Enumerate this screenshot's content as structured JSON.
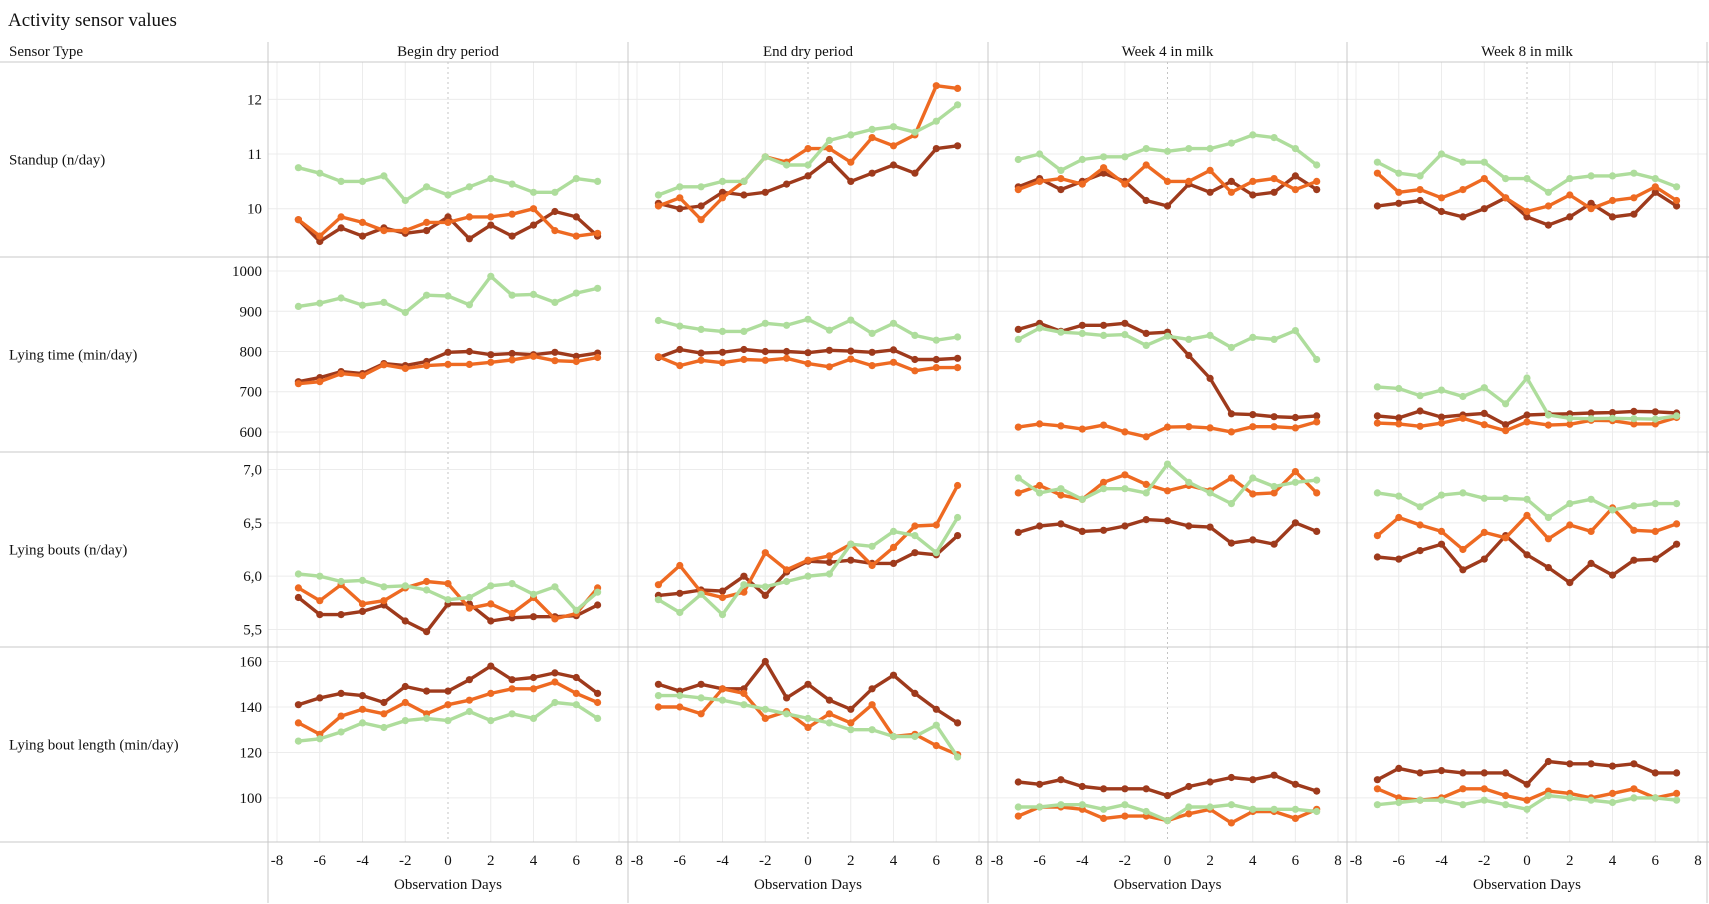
{
  "title": "Activity sensor values",
  "row_header": "Sensor Type",
  "x_axis_label": "Observation Days",
  "colors": {
    "series_a": "#9e3a1c",
    "series_b": "#ee6a22",
    "series_c": "#aedd9c",
    "grid": "#ececec",
    "divider": "#c8c8c8"
  },
  "chart_data": {
    "type": "line",
    "layout": "small-multiples",
    "columns": [
      "Begin dry period",
      "End dry period",
      "Week 4 in milk",
      "Week 8 in milk"
    ],
    "rows": [
      {
        "label": "Standup (n/day)",
        "ylim": [
          9.3,
          12.5
        ],
        "ticks": [
          10,
          11,
          12
        ],
        "tick_labels": [
          "10",
          "11",
          "12"
        ]
      },
      {
        "label": "Lying time (min/day)",
        "ylim": [
          575,
          1010
        ],
        "ticks": [
          600,
          700,
          800,
          900,
          1000
        ],
        "tick_labels": [
          "600",
          "700",
          "800",
          "900",
          "1000"
        ]
      },
      {
        "label": "Lying bouts (n/day)",
        "ylim": [
          5.43,
          7.07
        ],
        "ticks": [
          5.5,
          6.0,
          6.5,
          7.0
        ],
        "tick_labels": [
          "5,5",
          "6,0",
          "6,5",
          "7,0"
        ]
      },
      {
        "label": "Lying bout length (min/day)",
        "ylim": [
          85,
          162
        ],
        "ticks": [
          100,
          120,
          140,
          160
        ],
        "tick_labels": [
          "100",
          "120",
          "140",
          "160"
        ]
      }
    ],
    "x": [
      -7,
      -6,
      -5,
      -4,
      -3,
      -2,
      -1,
      0,
      1,
      2,
      3,
      4,
      5,
      6,
      7
    ],
    "xlim": [
      -8,
      8
    ],
    "x_ticks": [
      -8,
      -6,
      -4,
      -2,
      0,
      2,
      4,
      6,
      8
    ],
    "series": [
      {
        "color": "#9e3a1c",
        "values": [
          [
            [
              9.8,
              9.4,
              9.65,
              9.5,
              9.65,
              9.55,
              9.6,
              9.85,
              9.45,
              9.7,
              9.5,
              9.7,
              9.95,
              9.85,
              9.5
            ],
            [
              10.1,
              10.0,
              10.05,
              10.3,
              10.25,
              10.3,
              10.45,
              10.6,
              10.9,
              10.5,
              10.65,
              10.8,
              10.65,
              11.1,
              11.15
            ],
            [
              10.4,
              10.55,
              10.35,
              10.5,
              10.65,
              10.5,
              10.15,
              10.05,
              10.45,
              10.3,
              10.5,
              10.25,
              10.3,
              10.6,
              10.35
            ],
            [
              10.05,
              10.1,
              10.15,
              9.95,
              9.85,
              10.0,
              10.2,
              9.85,
              9.7,
              9.85,
              10.1,
              9.85,
              9.9,
              10.3,
              10.05
            ]
          ],
          [
            [
              725,
              735,
              750,
              745,
              770,
              765,
              775,
              798,
              800,
              792,
              795,
              792,
              798,
              788,
              796
            ],
            [
              785,
              805,
              796,
              798,
              805,
              800,
              800,
              797,
              803,
              801,
              798,
              804,
              780,
              780,
              783
            ],
            [
              855,
              870,
              850,
              865,
              865,
              870,
              845,
              848,
              790,
              733,
              645,
              643,
              638,
              636,
              640
            ],
            [
              640,
              635,
              652,
              637,
              642,
              646,
              618,
              642,
              644,
              645,
              647,
              648,
              651,
              650,
              647
            ]
          ],
          [
            [
              5.8,
              5.64,
              5.64,
              5.67,
              5.73,
              5.58,
              5.48,
              5.74,
              5.74,
              5.58,
              5.61,
              5.62,
              5.62,
              5.63,
              5.73
            ],
            [
              5.82,
              5.84,
              5.87,
              5.86,
              6.0,
              5.82,
              6.04,
              6.14,
              6.13,
              6.15,
              6.12,
              6.12,
              6.22,
              6.2,
              6.38
            ],
            [
              6.41,
              6.47,
              6.49,
              6.42,
              6.43,
              6.47,
              6.53,
              6.52,
              6.47,
              6.46,
              6.31,
              6.34,
              6.3,
              6.5,
              6.42
            ],
            [
              6.18,
              6.16,
              6.24,
              6.3,
              6.06,
              6.16,
              6.38,
              6.2,
              6.08,
              5.94,
              6.12,
              6.01,
              6.15,
              6.16,
              6.3
            ]
          ],
          [
            [
              141,
              144,
              146,
              145,
              142,
              149,
              147,
              147,
              152,
              158,
              152,
              153,
              155,
              153,
              146
            ],
            [
              150,
              147,
              150,
              148,
              148,
              160,
              144,
              150,
              143,
              139,
              148,
              154,
              146,
              139,
              133
            ],
            [
              107,
              106,
              108,
              105,
              104,
              104,
              104,
              101,
              105,
              107,
              109,
              108,
              110,
              106,
              103
            ],
            [
              108,
              113,
              111,
              112,
              111,
              111,
              111,
              106,
              116,
              115,
              115,
              114,
              115,
              111,
              111
            ]
          ]
        ]
      },
      {
        "color": "#ee6a22",
        "values": [
          [
            [
              9.8,
              9.5,
              9.85,
              9.75,
              9.6,
              9.6,
              9.75,
              9.75,
              9.85,
              9.85,
              9.9,
              10.0,
              9.6,
              9.5,
              9.55
            ],
            [
              10.05,
              10.2,
              9.8,
              10.2,
              10.5,
              10.95,
              10.85,
              11.1,
              11.1,
              10.85,
              11.3,
              11.15,
              11.35,
              12.25,
              12.2
            ],
            [
              10.35,
              10.5,
              10.55,
              10.45,
              10.75,
              10.45,
              10.8,
              10.5,
              10.5,
              10.7,
              10.3,
              10.5,
              10.55,
              10.35,
              10.5
            ],
            [
              10.65,
              10.3,
              10.35,
              10.2,
              10.35,
              10.55,
              10.2,
              9.95,
              10.05,
              10.25,
              10.0,
              10.15,
              10.2,
              10.4,
              10.15
            ]
          ],
          [
            [
              720,
              725,
              745,
              740,
              767,
              758,
              765,
              768,
              768,
              773,
              779,
              788,
              777,
              775,
              785
            ],
            [
              787,
              765,
              778,
              772,
              780,
              778,
              783,
              770,
              762,
              781,
              765,
              773,
              752,
              760,
              760
            ],
            [
              612,
              620,
              615,
              607,
              617,
              600,
              588,
              612,
              613,
              610,
              600,
              613,
              613,
              610,
              625
            ],
            [
              622,
              620,
              614,
              622,
              634,
              618,
              603,
              625,
              617,
              619,
              629,
              628,
              620,
              620,
              636
            ]
          ],
          [
            [
              5.89,
              5.77,
              5.92,
              5.74,
              5.77,
              5.89,
              5.95,
              5.93,
              5.7,
              5.74,
              5.65,
              5.8,
              5.6,
              5.65,
              5.89
            ],
            [
              5.92,
              6.1,
              5.85,
              5.8,
              5.85,
              6.22,
              6.06,
              6.15,
              6.19,
              6.3,
              6.1,
              6.27,
              6.47,
              6.48,
              6.85
            ],
            [
              6.78,
              6.85,
              6.76,
              6.72,
              6.88,
              6.95,
              6.86,
              6.8,
              6.85,
              6.8,
              6.92,
              6.77,
              6.78,
              6.98,
              6.78
            ],
            [
              6.38,
              6.55,
              6.48,
              6.42,
              6.25,
              6.41,
              6.36,
              6.57,
              6.35,
              6.48,
              6.42,
              6.64,
              6.43,
              6.42,
              6.49
            ]
          ],
          [
            [
              133,
              128,
              136,
              139,
              137,
              142,
              137,
              141,
              143,
              146,
              148,
              148,
              151,
              146,
              142
            ],
            [
              140,
              140,
              137,
              148,
              146,
              135,
              138,
              131,
              137,
              133,
              141,
              127,
              128,
              123,
              119
            ],
            [
              92,
              96,
              96,
              95,
              91,
              92,
              92,
              90,
              93,
              95,
              89,
              94,
              94,
              91,
              95
            ],
            [
              104,
              100,
              99,
              100,
              104,
              104,
              101,
              99,
              103,
              102,
              100,
              102,
              104,
              100,
              102
            ]
          ]
        ]
      },
      {
        "color": "#aedd9c",
        "values": [
          [
            [
              10.75,
              10.65,
              10.5,
              10.5,
              10.6,
              10.15,
              10.4,
              10.25,
              10.4,
              10.55,
              10.45,
              10.3,
              10.3,
              10.55,
              10.5
            ],
            [
              10.25,
              10.4,
              10.4,
              10.5,
              10.5,
              10.95,
              10.8,
              10.8,
              11.25,
              11.35,
              11.45,
              11.5,
              11.4,
              11.6,
              11.9
            ],
            [
              10.9,
              11.0,
              10.7,
              10.9,
              10.95,
              10.95,
              11.1,
              11.05,
              11.1,
              11.1,
              11.2,
              11.35,
              11.3,
              11.1,
              10.8
            ],
            [
              10.85,
              10.65,
              10.6,
              11.0,
              10.85,
              10.85,
              10.55,
              10.55,
              10.3,
              10.55,
              10.6,
              10.6,
              10.65,
              10.55,
              10.4
            ]
          ],
          [
            [
              912,
              920,
              933,
              915,
              922,
              897,
              940,
              938,
              916,
              987,
              940,
              942,
              922,
              945,
              957
            ],
            [
              877,
              863,
              855,
              850,
              850,
              870,
              865,
              880,
              853,
              878,
              845,
              870,
              840,
              828,
              836
            ],
            [
              830,
              858,
              848,
              845,
              840,
              842,
              815,
              838,
              830,
              840,
              810,
              835,
              830,
              852,
              780
            ],
            [
              712,
              708,
              690,
              704,
              688,
              710,
              670,
              734,
              642,
              634,
              633,
              634,
              633,
              632,
              640
            ]
          ],
          [
            [
              6.02,
              6.0,
              5.95,
              5.96,
              5.9,
              5.91,
              5.87,
              5.78,
              5.8,
              5.91,
              5.93,
              5.83,
              5.9,
              5.68,
              5.85
            ],
            [
              5.78,
              5.66,
              5.83,
              5.64,
              5.92,
              5.9,
              5.95,
              6.0,
              6.02,
              6.3,
              6.28,
              6.42,
              6.38,
              6.22,
              6.55
            ],
            [
              6.92,
              6.78,
              6.82,
              6.72,
              6.82,
              6.82,
              6.78,
              7.05,
              6.88,
              6.78,
              6.68,
              6.92,
              6.84,
              6.88,
              6.9
            ],
            [
              6.78,
              6.75,
              6.65,
              6.76,
              6.78,
              6.73,
              6.73,
              6.72,
              6.55,
              6.68,
              6.72,
              6.62,
              6.66,
              6.68,
              6.68
            ]
          ],
          [
            [
              125,
              126,
              129,
              133,
              131,
              134,
              135,
              134,
              138,
              134,
              137,
              135,
              142,
              141,
              135
            ],
            [
              145,
              145,
              144,
              143,
              141,
              139,
              137,
              135,
              133,
              130,
              130,
              127,
              127,
              132,
              118
            ],
            [
              96,
              96,
              97,
              97,
              95,
              97,
              94,
              90,
              96,
              96,
              97,
              95,
              95,
              95,
              94
            ],
            [
              97,
              98,
              99,
              99,
              97,
              99,
              97,
              95,
              101,
              100,
              99,
              98,
              100,
              100,
              99
            ]
          ]
        ]
      }
    ]
  }
}
